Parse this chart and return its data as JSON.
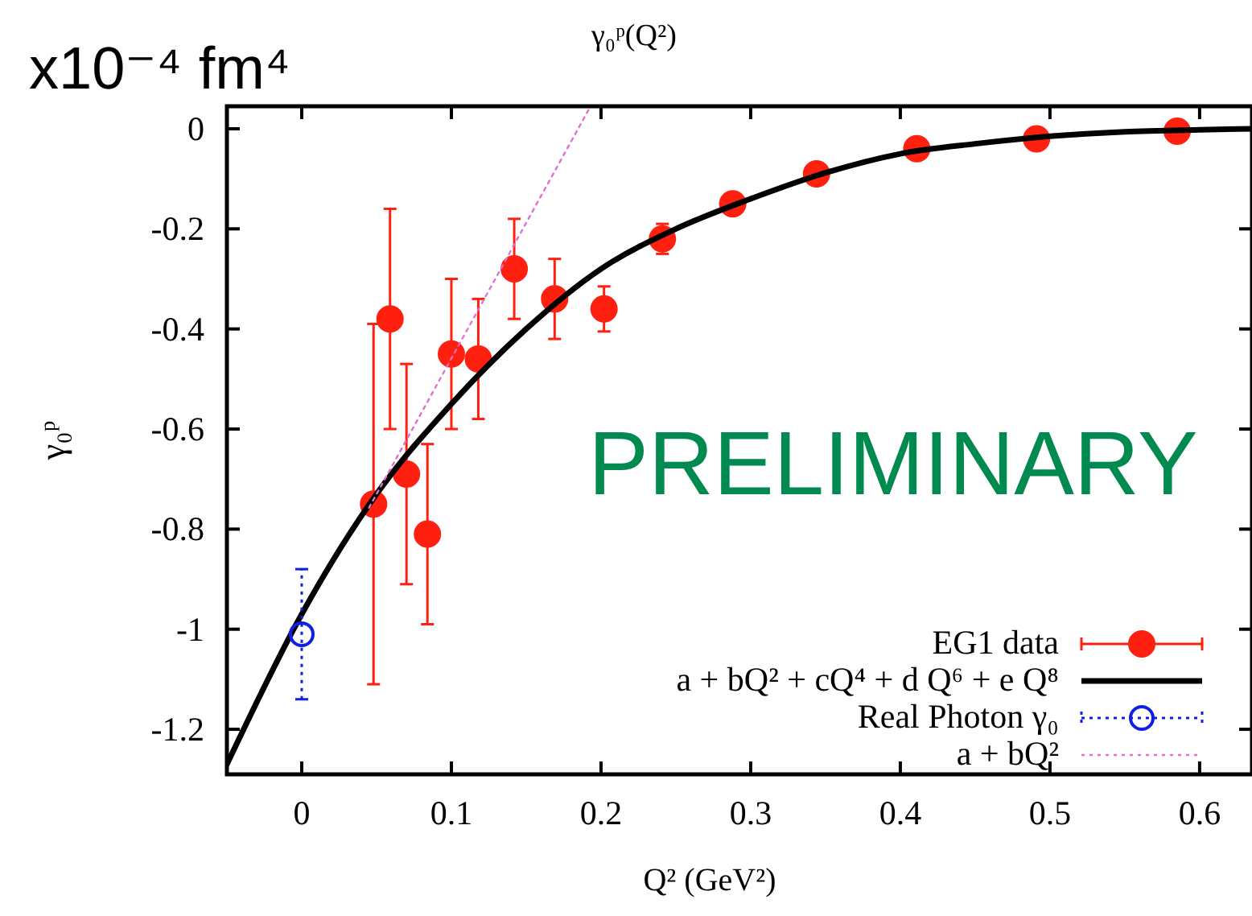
{
  "chart_data": {
    "type": "scatter",
    "title": "γ₀ᵖ(Q²)",
    "xlabel": "Q² (GeV²)",
    "ylabel": "γ₀ᵖ",
    "annotations": [
      "x10⁻⁴ fm⁴",
      "PRELIMINARY"
    ],
    "xlim": [
      -0.05,
      0.635
    ],
    "ylim": [
      -1.29,
      0.045
    ],
    "xticks": [
      0,
      0.1,
      0.2,
      0.3,
      0.4,
      0.5,
      0.6
    ],
    "yticks": [
      0,
      -0.2,
      -0.4,
      -0.6,
      -0.8,
      -1,
      -1.2
    ],
    "grid": false,
    "legend": "bottom right",
    "series": [
      {
        "name": "EG1 data",
        "type": "scatter",
        "color": "#ff2010",
        "marker": "circle",
        "x": [
          0.048,
          0.059,
          0.07,
          0.084,
          0.1,
          0.118,
          0.142,
          0.169,
          0.202,
          0.241,
          0.288,
          0.344,
          0.411,
          0.491,
          0.585
        ],
        "values": [
          -0.75,
          -0.38,
          -0.69,
          -0.81,
          -0.45,
          -0.46,
          -0.28,
          -0.34,
          -0.36,
          -0.22,
          -0.15,
          -0.09,
          -0.04,
          -0.02,
          -0.005
        ],
        "errors": [
          0.36,
          0.22,
          0.22,
          0.18,
          0.15,
          0.12,
          0.1,
          0.08,
          0.045,
          0.03,
          null,
          null,
          null,
          null,
          null
        ]
      },
      {
        "name": "a + bQ² + cQ⁴ + d Q⁶ + e Q⁸",
        "type": "line",
        "color": "#000000",
        "marker": "none",
        "line_style": "solid",
        "x": [
          -0.05,
          0,
          0.05,
          0.1,
          0.15,
          0.2,
          0.25,
          0.3,
          0.35,
          0.4,
          0.45,
          0.5,
          0.55,
          0.6,
          0.635
        ],
        "values": [
          -1.27,
          -0.97,
          -0.73,
          -0.55,
          -0.4,
          -0.28,
          -0.2,
          -0.14,
          -0.088,
          -0.05,
          -0.03,
          -0.015,
          -0.006,
          -0.002,
          0
        ]
      },
      {
        "name": "Real Photon γ₀",
        "type": "scatter",
        "color": "#1020e0",
        "marker": "circle",
        "line_style": "dotted",
        "x": [
          0
        ],
        "values": [
          -1.01
        ],
        "errors": [
          0.13
        ]
      },
      {
        "name": "a + bQ²",
        "type": "line",
        "color": "#e070d0",
        "marker": "none",
        "line_style": "dotted",
        "x": [
          0.045,
          0.193
        ],
        "values": [
          -0.757,
          0.045
        ]
      }
    ]
  }
}
